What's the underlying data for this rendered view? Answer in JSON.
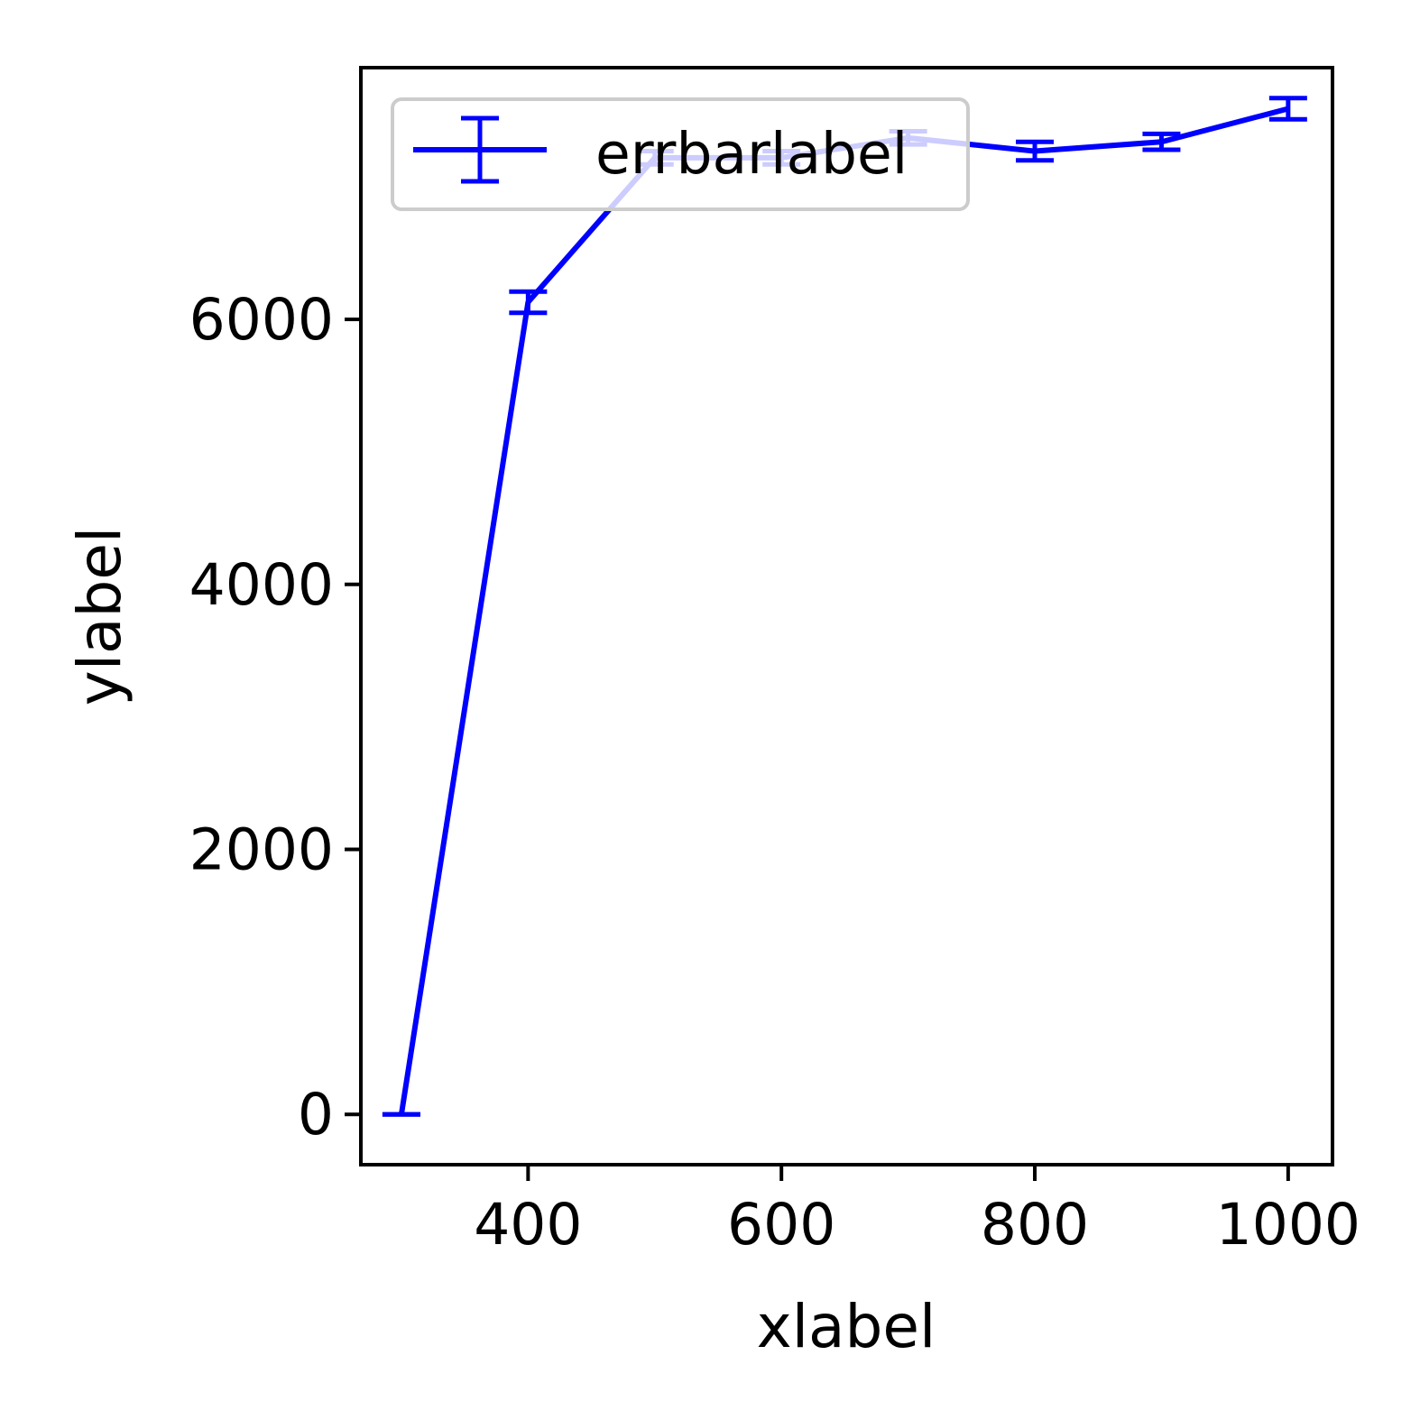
{
  "chart_data": {
    "type": "line",
    "xlabel": "xlabel",
    "ylabel": "ylabel",
    "xlim": [
      268,
      1035
    ],
    "ylim": [
      -380,
      7900
    ],
    "xticks": [
      400,
      600,
      800,
      1000
    ],
    "yticks": [
      0,
      2000,
      4000,
      6000
    ],
    "grid": false,
    "legend": {
      "position": "upper left",
      "entries": [
        "errbarlabel"
      ]
    },
    "series": [
      {
        "name": "errbarlabel",
        "color": "#0000ff",
        "marker": "errorbar",
        "x": [
          300,
          400,
          500,
          600,
          700,
          800,
          900,
          1000
        ],
        "y": [
          0,
          6130,
          7220,
          7220,
          7370,
          7270,
          7340,
          7590
        ],
        "yerr": [
          0,
          80,
          50,
          50,
          50,
          70,
          60,
          80
        ]
      }
    ]
  }
}
